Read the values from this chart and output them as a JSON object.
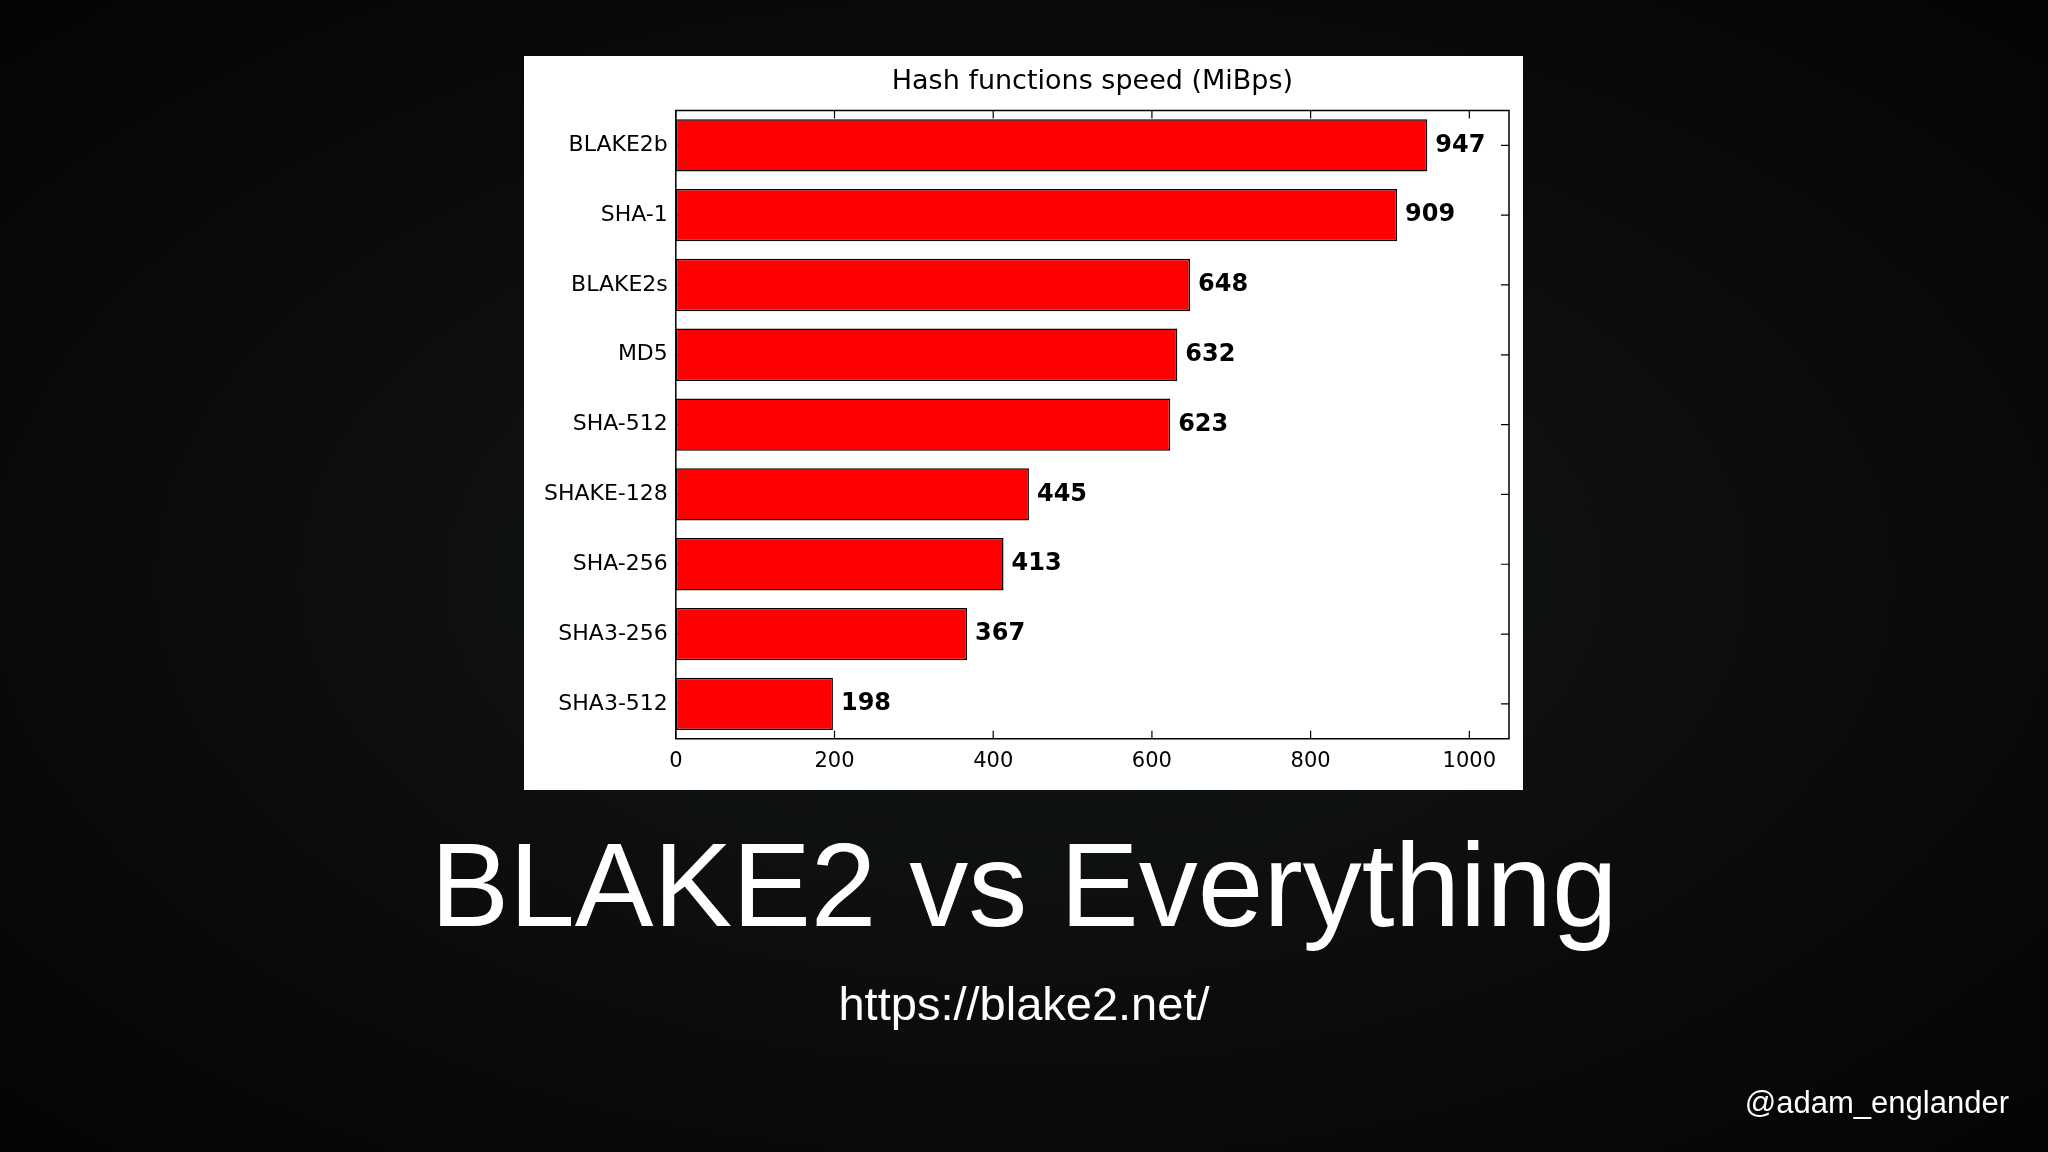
{
  "chart_data": {
    "type": "bar",
    "title": "Hash functions speed (MiBps)",
    "orientation": "horizontal",
    "categories": [
      "BLAKE2b",
      "SHA-1",
      "BLAKE2s",
      "MD5",
      "SHA-512",
      "SHAKE-128",
      "SHA-256",
      "SHA3-256",
      "SHA3-512"
    ],
    "values": [
      947,
      909,
      648,
      632,
      623,
      445,
      413,
      367,
      198
    ],
    "color": "#ff0000",
    "xlim": [
      0,
      1050
    ],
    "xticks": [
      0,
      200,
      400,
      600,
      800,
      1000
    ],
    "data_labels": true,
    "annotations": [
      "BLAKE2 vs Everything",
      "https://blake2.net/",
      "@adam_englander"
    ]
  }
}
